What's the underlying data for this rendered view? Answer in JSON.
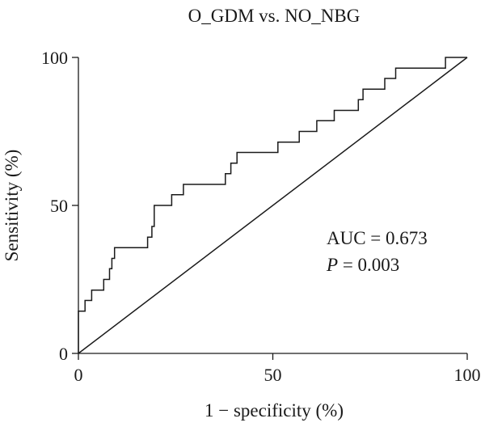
{
  "chart_data": {
    "type": "line",
    "title": "O_GDM vs. NO_NBG",
    "xlabel": "1 − specificity (%)",
    "ylabel": "Sensitivity (%)",
    "xlim": [
      0,
      100
    ],
    "ylim": [
      0,
      100
    ],
    "xticks": [
      0,
      50,
      100
    ],
    "yticks": [
      0,
      50,
      100
    ],
    "grid": false,
    "annotation": {
      "auc": "AUC = 0.673",
      "p_symbol": "P",
      "p_value": " = 0.003"
    },
    "series": [
      {
        "kind": "roc-step",
        "x": [
          0,
          0,
          1.7,
          1.7,
          3.4,
          3.4,
          6.5,
          6.5,
          8.0,
          8.0,
          8.6,
          8.6,
          9.3,
          9.3,
          17.8,
          17.8,
          18.9,
          18.9,
          19.5,
          19.5,
          24.0,
          24.0,
          27.0,
          27.0,
          37.8,
          37.8,
          39.2,
          39.2,
          40.8,
          40.8,
          51.3,
          51.3,
          56.8,
          56.8,
          61.3,
          61.3,
          65.8,
          65.8,
          72.0,
          72.0,
          73.2,
          73.2,
          78.8,
          78.8,
          81.6,
          81.6,
          94.4,
          94.4,
          100
        ],
        "y": [
          0,
          14.3,
          14.3,
          17.9,
          17.9,
          21.4,
          21.4,
          25.0,
          25.0,
          28.6,
          28.6,
          32.1,
          32.1,
          35.7,
          35.7,
          39.3,
          39.3,
          42.9,
          42.9,
          50.0,
          50.0,
          53.6,
          53.6,
          57.1,
          57.1,
          60.7,
          60.7,
          64.3,
          64.3,
          67.9,
          67.9,
          71.4,
          71.4,
          75.0,
          75.0,
          78.6,
          78.6,
          82.1,
          82.1,
          85.7,
          85.7,
          89.3,
          89.3,
          92.9,
          92.9,
          96.4,
          96.4,
          100,
          100
        ]
      },
      {
        "kind": "reference",
        "x": [
          0,
          100
        ],
        "y": [
          0,
          100
        ]
      }
    ]
  }
}
